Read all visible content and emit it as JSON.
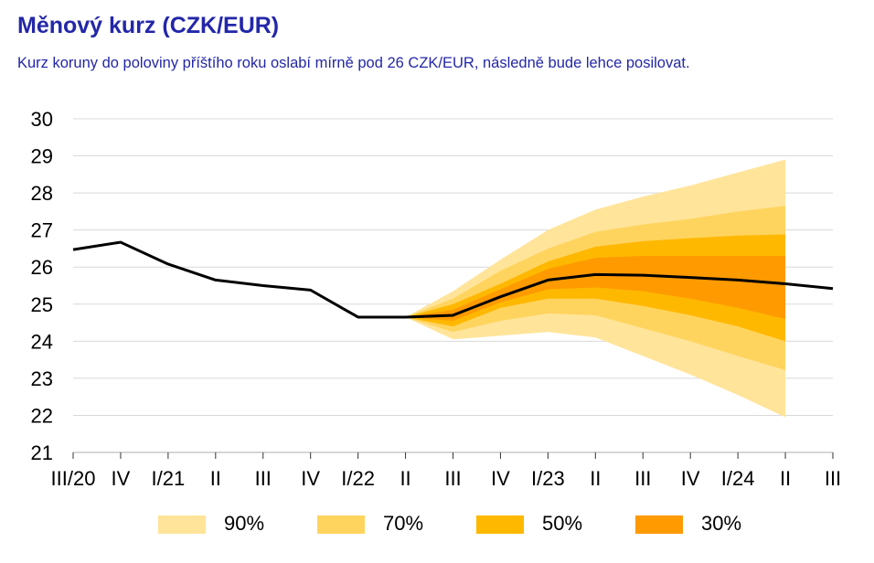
{
  "header": {
    "title": "Měnový kurz (CZK/EUR)",
    "subtitle": "Kurz koruny do poloviny příštího roku oslabí mírně pod 26 CZK/EUR, následně bude lehce posilovat."
  },
  "colors": {
    "title": "#2327a8",
    "line": "#000000",
    "grid": "#d9d9d9",
    "band90": "#ffe49a",
    "band70": "#ffd45e",
    "band50": "#ffb800",
    "band30": "#ff9a00"
  },
  "legend": [
    {
      "label": "90%",
      "color": "#ffe49a"
    },
    {
      "label": "70%",
      "color": "#ffd45e"
    },
    {
      "label": "50%",
      "color": "#ffb800"
    },
    {
      "label": "30%",
      "color": "#ff9a00"
    }
  ],
  "chart_data": {
    "type": "line",
    "title": "Měnový kurz (CZK/EUR)",
    "xlabel": "",
    "ylabel": "",
    "categories": [
      "III/20",
      "IV",
      "I/21",
      "II",
      "III",
      "IV",
      "I/22",
      "II",
      "III",
      "IV",
      "I/23",
      "II",
      "III",
      "IV",
      "I/24",
      "II",
      "III"
    ],
    "ylim": [
      21,
      30
    ],
    "yticks": [
      21,
      22,
      23,
      24,
      25,
      26,
      27,
      28,
      29,
      30
    ],
    "grid": true,
    "legend_position": "bottom",
    "series": [
      {
        "values": [
          26.47,
          26.67,
          26.08,
          25.65,
          25.5,
          25.38,
          24.65,
          24.65,
          24.7,
          25.2,
          25.65,
          25.8,
          25.78,
          25.72,
          25.65,
          25.55,
          25.42
        ]
      }
    ],
    "fan_start_index": 7,
    "fan_bands": [
      {
        "level": "90%",
        "lower": [
          24.65,
          24.05,
          24.15,
          24.25,
          24.1,
          23.6,
          23.1,
          22.55,
          21.95
        ],
        "upper": [
          24.65,
          25.35,
          26.2,
          27.0,
          27.55,
          27.9,
          28.2,
          28.55,
          28.9
        ]
      },
      {
        "level": "70%",
        "lower": [
          24.65,
          24.25,
          24.55,
          24.75,
          24.7,
          24.35,
          24.0,
          23.6,
          23.22
        ],
        "upper": [
          24.65,
          25.15,
          25.9,
          26.5,
          26.95,
          27.15,
          27.3,
          27.5,
          27.65
        ]
      },
      {
        "level": "50%",
        "lower": [
          24.65,
          24.4,
          24.9,
          25.15,
          25.15,
          24.95,
          24.7,
          24.4,
          24.0
        ],
        "upper": [
          24.65,
          25.0,
          25.55,
          26.15,
          26.55,
          26.7,
          26.78,
          26.85,
          26.88
        ]
      },
      {
        "level": "30%",
        "lower": [
          24.65,
          24.55,
          25.05,
          25.4,
          25.45,
          25.35,
          25.15,
          24.9,
          24.6
        ],
        "upper": [
          24.65,
          24.85,
          25.4,
          25.95,
          26.25,
          26.3,
          26.3,
          26.3,
          26.3
        ]
      }
    ]
  }
}
